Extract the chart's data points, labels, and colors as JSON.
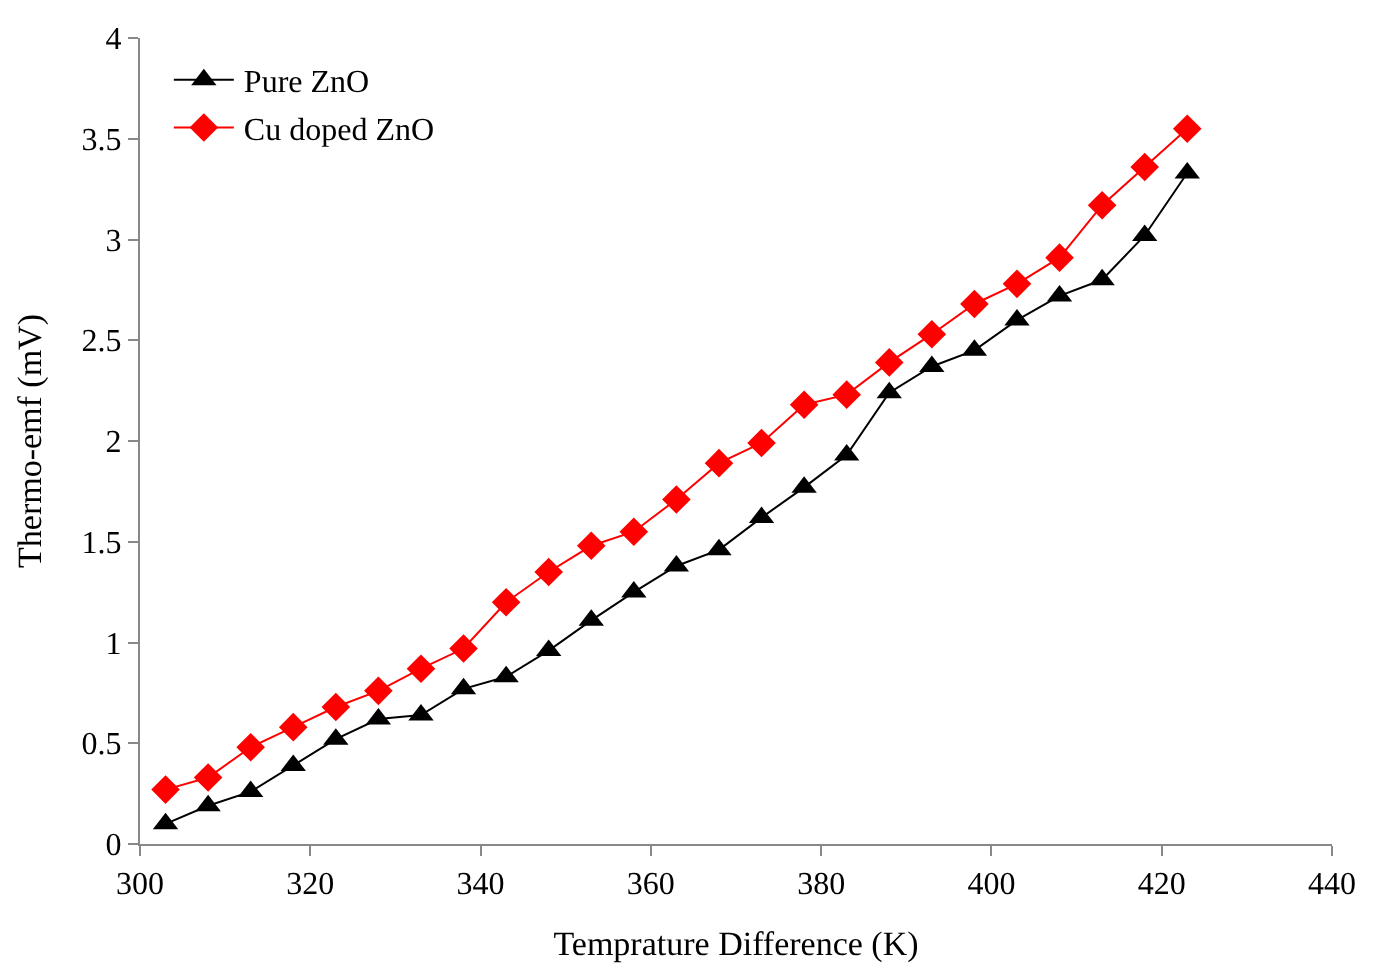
{
  "chart_data": {
    "type": "line",
    "xlabel": "Temprature Difference (K)",
    "ylabel": "Thermo-emf (mV)",
    "x": [
      303,
      308,
      313,
      318,
      323,
      328,
      333,
      338,
      343,
      348,
      353,
      358,
      363,
      368,
      373,
      378,
      383,
      388,
      393,
      398,
      403,
      408,
      413,
      418,
      423
    ],
    "series": [
      {
        "name": "Pure ZnO",
        "color": "#000000",
        "marker": "triangle",
        "values": [
          0.1,
          0.19,
          0.26,
          0.39,
          0.52,
          0.62,
          0.64,
          0.77,
          0.83,
          0.96,
          1.11,
          1.25,
          1.38,
          1.46,
          1.62,
          1.77,
          1.93,
          2.24,
          2.37,
          2.45,
          2.6,
          2.72,
          2.8,
          3.02,
          3.33
        ]
      },
      {
        "name": "Cu doped ZnO",
        "color": "#ff0000",
        "marker": "diamond",
        "values": [
          0.27,
          0.33,
          0.48,
          0.58,
          0.68,
          0.76,
          0.87,
          0.97,
          1.2,
          1.35,
          1.48,
          1.55,
          1.71,
          1.89,
          1.99,
          2.18,
          2.23,
          2.39,
          2.53,
          2.68,
          2.78,
          2.91,
          3.17,
          3.36,
          3.55
        ]
      }
    ],
    "xlim": [
      300,
      440
    ],
    "xticks": [
      300,
      320,
      340,
      360,
      380,
      400,
      420,
      440
    ],
    "ylim": [
      0,
      4
    ],
    "yticks": [
      0,
      0.5,
      1,
      1.5,
      2,
      2.5,
      3,
      3.5,
      4
    ],
    "legend": "top left",
    "line_style": "solid"
  }
}
